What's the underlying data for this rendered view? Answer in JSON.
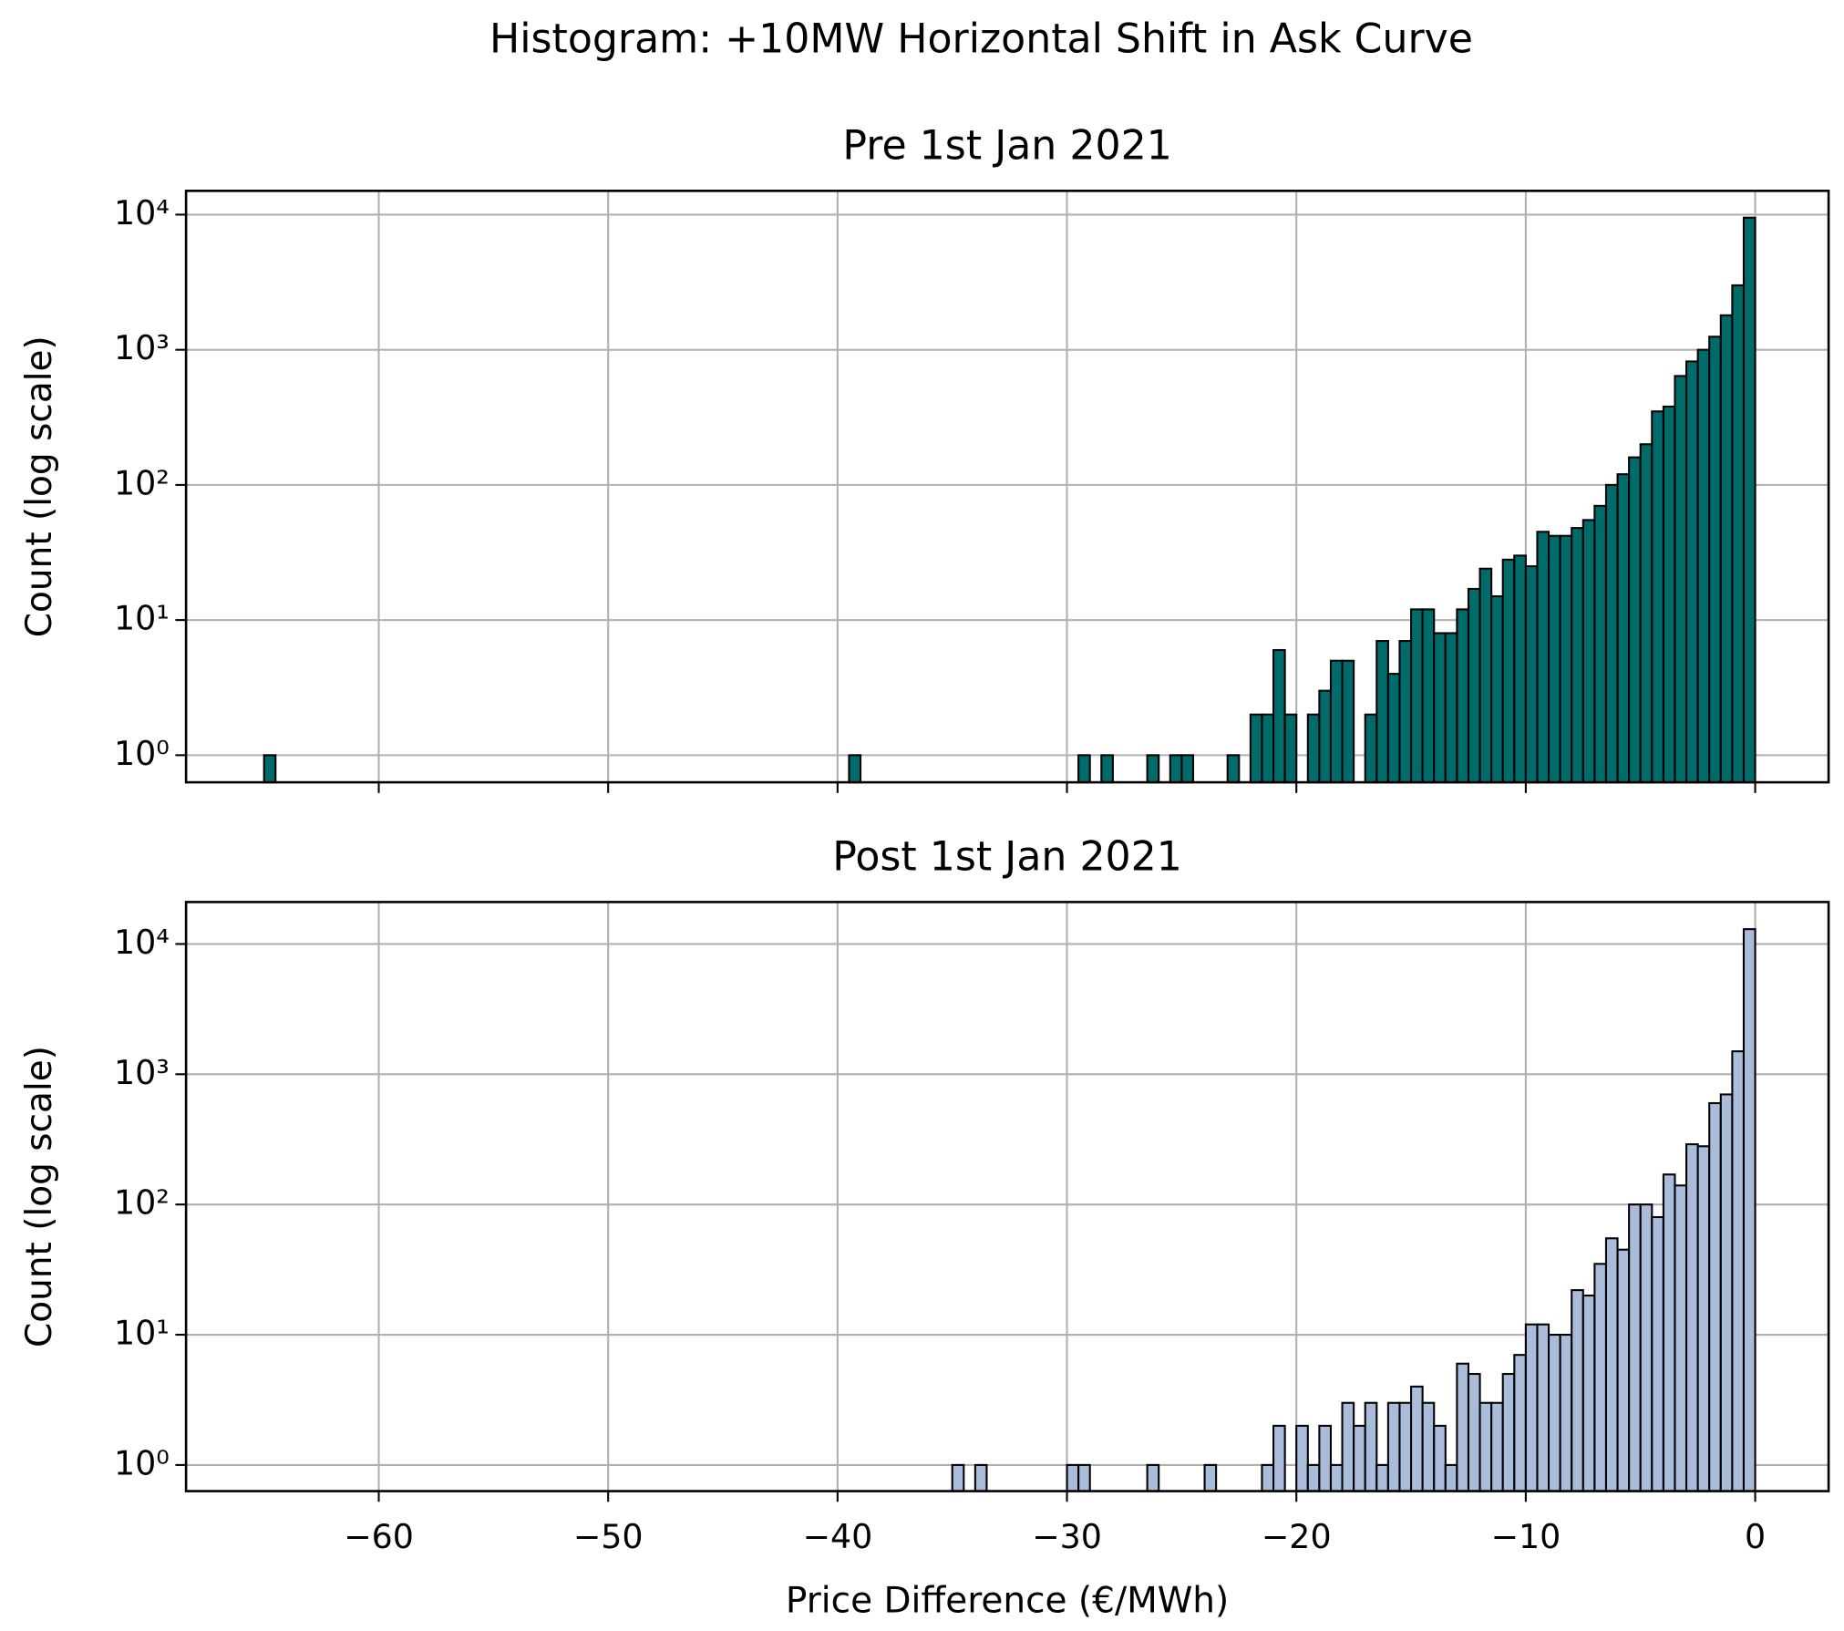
{
  "title": "Histogram: +10MW Horizontal Shift in Ask Curve",
  "chart_data": [
    {
      "type": "histogram",
      "title": "Pre 1st Jan 2021",
      "ylabel": "Count (log scale)",
      "log_scale": true,
      "grid": true,
      "color": "#006b6b",
      "edgecolor": "#000000",
      "bins": [
        -65.5,
        -65,
        -64.5,
        -64,
        -63.5,
        -63,
        -62.5,
        -62,
        -61.5,
        -61,
        -60.5,
        -60,
        -59.5,
        -59,
        -58.5,
        -58,
        -57.5,
        -57,
        -56.5,
        -56,
        -55.5,
        -55,
        -54.5,
        -54,
        -53.5,
        -53,
        -52.5,
        -52,
        -51.5,
        -51,
        -50.5,
        -50,
        -49.5,
        -49,
        -48.5,
        -48,
        -47.5,
        -47,
        -46.5,
        -46,
        -45.5,
        -45,
        -44.5,
        -44,
        -43.5,
        -43,
        -42.5,
        -42,
        -41.5,
        -41,
        -40.5,
        -40,
        -39.5,
        -39,
        -38.5,
        -38,
        -37.5,
        -37,
        -36.5,
        -36,
        -35.5,
        -35,
        -34.5,
        -34,
        -33.5,
        -33,
        -32.5,
        -32,
        -31.5,
        -31,
        -30.5,
        -30,
        -29.5,
        -29,
        -28.5,
        -28,
        -27.5,
        -27,
        -26.5,
        -26,
        -25.5,
        -25,
        -24.5,
        -24,
        -23.5,
        -23,
        -22.5,
        -22,
        -21.5,
        -21,
        -20.5,
        -20,
        -19.5,
        -19,
        -18.5,
        -18,
        -17.5,
        -17,
        -16.5,
        -16,
        -15.5,
        -15,
        -14.5,
        -14,
        -13.5,
        -13,
        -12.5,
        -12,
        -11.5,
        -11,
        -10.5,
        -10,
        -9.5,
        -9,
        -8.5,
        -8,
        -7.5,
        -7,
        -6.5,
        -6,
        -5.5,
        -5,
        -4.5,
        -4,
        -3.5,
        -3,
        -2.5,
        -2,
        -1.5,
        -1,
        -0.5,
        0
      ],
      "values": [
        0,
        1,
        0,
        0,
        0,
        0,
        0,
        0,
        0,
        0,
        0,
        0,
        0,
        0,
        0,
        0,
        0,
        0,
        0,
        0,
        0,
        0,
        0,
        0,
        0,
        0,
        0,
        0,
        0,
        0,
        0,
        0,
        0,
        0,
        0,
        0,
        0,
        0,
        0,
        0,
        0,
        0,
        0,
        0,
        0,
        0,
        0,
        0,
        0,
        0,
        0,
        0,
        1,
        0,
        0,
        0,
        0,
        0,
        0,
        0,
        0,
        0,
        0,
        0,
        0,
        0,
        0,
        0,
        0,
        0,
        0,
        0,
        1,
        0,
        1,
        0,
        0,
        0,
        1,
        0,
        1,
        1,
        0,
        0,
        0,
        1,
        0,
        2,
        2,
        6,
        2,
        0,
        2,
        3,
        5,
        5,
        0,
        2,
        7,
        4,
        7,
        12,
        12,
        8,
        8,
        12,
        17,
        24,
        15,
        28,
        30,
        25,
        45,
        42,
        42,
        48,
        55,
        70,
        100,
        120,
        160,
        200,
        350,
        380,
        640,
        820,
        1000,
        1250,
        1800,
        3000,
        9500
      ],
      "xlim": [
        -68.4,
        3.2
      ],
      "ylim": [
        0.63,
        15000
      ],
      "xticks": [
        -60,
        -50,
        -40,
        -30,
        -20,
        -10,
        0
      ],
      "yticks": [
        {
          "value": 1,
          "label": "10⁰"
        },
        {
          "value": 10,
          "label": "10¹"
        },
        {
          "value": 100,
          "label": "10²"
        },
        {
          "value": 1000,
          "label": "10³"
        },
        {
          "value": 10000,
          "label": "10⁴"
        }
      ]
    },
    {
      "type": "histogram",
      "title": "Post 1st Jan 2021",
      "ylabel": "Count (log scale)",
      "xlabel": "Price Difference (€/MWh)",
      "log_scale": true,
      "grid": true,
      "color": "#a9bcd9",
      "edgecolor": "#000000",
      "bins": [
        -35.5,
        -35,
        -34.5,
        -34,
        -33.5,
        -33,
        -32.5,
        -32,
        -31.5,
        -31,
        -30.5,
        -30,
        -29.5,
        -29,
        -28.5,
        -28,
        -27.5,
        -27,
        -26.5,
        -26,
        -25.5,
        -25,
        -24.5,
        -24,
        -23.5,
        -23,
        -22.5,
        -22,
        -21.5,
        -21,
        -20.5,
        -20,
        -19.5,
        -19,
        -18.5,
        -18,
        -17.5,
        -17,
        -16.5,
        -16,
        -15.5,
        -15,
        -14.5,
        -14,
        -13.5,
        -13,
        -12.5,
        -12,
        -11.5,
        -11,
        -10.5,
        -10,
        -9.5,
        -9,
        -8.5,
        -8,
        -7.5,
        -7,
        -6.5,
        -6,
        -5.5,
        -5,
        -4.5,
        -4,
        -3.5,
        -3,
        -2.5,
        -2,
        -1.5,
        -1,
        -0.5,
        0
      ],
      "values": [
        0,
        1,
        0,
        1,
        0,
        0,
        0,
        0,
        0,
        0,
        0,
        1,
        1,
        0,
        0,
        0,
        0,
        0,
        1,
        0,
        0,
        0,
        0,
        1,
        0,
        0,
        0,
        0,
        1,
        2,
        0,
        2,
        1,
        2,
        1,
        3,
        2,
        3,
        1,
        3,
        3,
        4,
        3,
        2,
        1,
        6,
        5,
        3,
        3,
        5,
        7,
        12,
        12,
        10,
        10,
        22,
        20,
        35,
        55,
        45,
        100,
        100,
        80,
        170,
        140,
        290,
        280,
        600,
        700,
        1500,
        13000
      ],
      "xlim": [
        -68.4,
        3.2
      ],
      "ylim": [
        0.63,
        21000
      ],
      "xticks": [
        {
          "value": -60,
          "label": "−60"
        },
        {
          "value": -50,
          "label": "−50"
        },
        {
          "value": -40,
          "label": "−40"
        },
        {
          "value": -30,
          "label": "−30"
        },
        {
          "value": -20,
          "label": "−20"
        },
        {
          "value": -10,
          "label": "−10"
        },
        0
      ],
      "yticks": [
        {
          "value": 1,
          "label": "10⁰"
        },
        {
          "value": 10,
          "label": "10¹"
        },
        {
          "value": 100,
          "label": "10²"
        },
        {
          "value": 1000,
          "label": "10³"
        },
        {
          "value": 10000,
          "label": "10⁴"
        }
      ]
    }
  ]
}
